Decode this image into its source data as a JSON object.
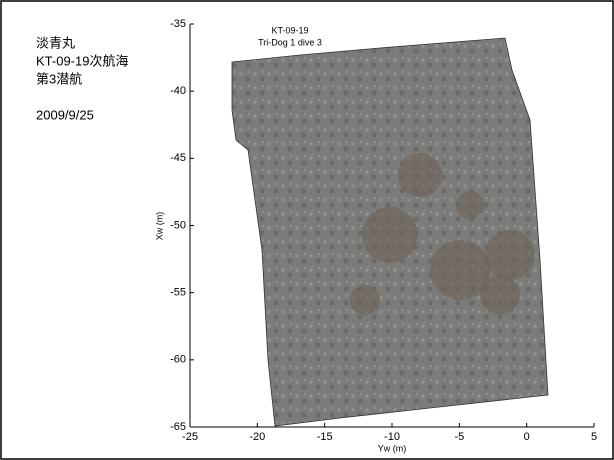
{
  "chart_data": {
    "type": "image",
    "title": "KT-09-19",
    "subtitle": "Tri-Dog 1  dive 3",
    "annotations": [
      "淡青丸",
      "KT-09-19次航海",
      "第3潜航",
      "2009/9/25"
    ],
    "x_label": "Yw (m)",
    "y_label": "Xw (m)",
    "xlim": [
      -25,
      5
    ],
    "xticks": [
      -25,
      -20,
      -15,
      -10,
      -5,
      0,
      5
    ],
    "ylim": [
      -35,
      -65
    ],
    "yticks": [
      -35,
      -40,
      -45,
      -50,
      -55,
      -60,
      -65
    ],
    "y_reversed": true
  }
}
